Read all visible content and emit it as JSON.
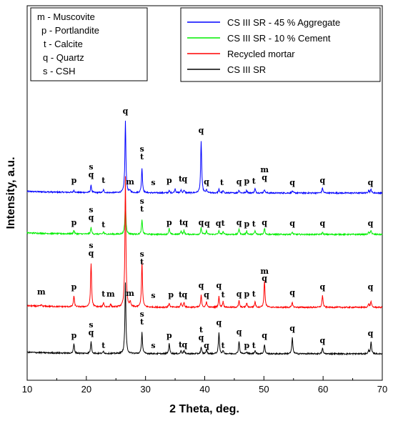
{
  "chart_data": {
    "type": "line",
    "xlabel": "2 Theta, deg.",
    "ylabel": "Intensity, a.u.",
    "xlim": [
      10,
      70
    ],
    "xticks": [
      "10",
      "20",
      "30",
      "40",
      "50",
      "60",
      "70"
    ],
    "phase_legend": [
      "m - Muscovite",
      "p - Portlandite",
      "t - Calcite",
      "q - Quartz",
      "s - CSH"
    ],
    "series": [
      {
        "name": "CS III SR - 45 % Aggregate",
        "color": "#0000ff",
        "baseline": 270,
        "peaks": [
          {
            "x": 17.9,
            "h": 3
          },
          {
            "x": 20.8,
            "h": 10
          },
          {
            "x": 22.9,
            "h": 4
          },
          {
            "x": 26.6,
            "h": 100
          },
          {
            "x": 27.4,
            "h": 3
          },
          {
            "x": 29.4,
            "h": 35
          },
          {
            "x": 34.0,
            "h": 3
          },
          {
            "x": 35.0,
            "h": 6
          },
          {
            "x": 36.0,
            "h": 4
          },
          {
            "x": 36.5,
            "h": 4
          },
          {
            "x": 39.4,
            "h": 73
          },
          {
            "x": 40.3,
            "h": 4
          },
          {
            "x": 42.4,
            "h": 5
          },
          {
            "x": 43.1,
            "h": 3
          },
          {
            "x": 45.8,
            "h": 4
          },
          {
            "x": 47.1,
            "h": 4
          },
          {
            "x": 48.5,
            "h": 6
          },
          {
            "x": 50.1,
            "h": 5
          },
          {
            "x": 54.8,
            "h": 3
          },
          {
            "x": 59.9,
            "h": 7
          },
          {
            "x": 67.7,
            "h": 4
          },
          {
            "x": 68.1,
            "h": 5
          }
        ],
        "labels": [
          {
            "x": 17.9,
            "text": "p",
            "h": 14
          },
          {
            "x": 20.8,
            "text": "q",
            "h": 22
          },
          {
            "x": 20.8,
            "text": "s",
            "h": 33
          },
          {
            "x": 22.9,
            "text": "t",
            "h": 14
          },
          {
            "x": 26.6,
            "text": "q",
            "h": 111
          },
          {
            "x": 27.4,
            "text": "m",
            "h": 12
          },
          {
            "x": 29.4,
            "text": "t",
            "h": 47
          },
          {
            "x": 29.4,
            "text": "s",
            "h": 58
          },
          {
            "x": 31.3,
            "text": "s",
            "h": 11
          },
          {
            "x": 34.0,
            "text": "p",
            "h": 14
          },
          {
            "x": 35.9,
            "text": "t",
            "h": 16
          },
          {
            "x": 36.6,
            "text": "q",
            "h": 16
          },
          {
            "x": 39.4,
            "text": "q",
            "h": 84
          },
          {
            "x": 40.3,
            "text": "q",
            "h": 12
          },
          {
            "x": 42.9,
            "text": "t",
            "h": 11
          },
          {
            "x": 45.8,
            "text": "q",
            "h": 12
          },
          {
            "x": 47.1,
            "text": "p",
            "h": 13
          },
          {
            "x": 48.3,
            "text": "t",
            "h": 13
          },
          {
            "x": 50.1,
            "text": "q",
            "h": 18
          },
          {
            "x": 50.1,
            "text": "m",
            "h": 29
          },
          {
            "x": 54.8,
            "text": "q",
            "h": 11
          },
          {
            "x": 59.9,
            "text": "q",
            "h": 14
          },
          {
            "x": 68.0,
            "text": "q",
            "h": 11
          }
        ]
      },
      {
        "name": "CS III SR - 10 % Cement",
        "color": "#00ee00",
        "baseline": 328,
        "peaks": [
          {
            "x": 17.9,
            "h": 5
          },
          {
            "x": 20.8,
            "h": 9
          },
          {
            "x": 22.9,
            "h": 3
          },
          {
            "x": 26.6,
            "h": 47
          },
          {
            "x": 29.4,
            "h": 20
          },
          {
            "x": 34.0,
            "h": 8
          },
          {
            "x": 36.0,
            "h": 5
          },
          {
            "x": 36.5,
            "h": 5
          },
          {
            "x": 39.4,
            "h": 9
          },
          {
            "x": 40.3,
            "h": 5
          },
          {
            "x": 42.4,
            "h": 5
          },
          {
            "x": 43.1,
            "h": 4
          },
          {
            "x": 45.8,
            "h": 8
          },
          {
            "x": 47.1,
            "h": 5
          },
          {
            "x": 48.5,
            "h": 5
          },
          {
            "x": 50.1,
            "h": 9
          },
          {
            "x": 54.8,
            "h": 3
          },
          {
            "x": 59.9,
            "h": 3
          },
          {
            "x": 67.7,
            "h": 3
          },
          {
            "x": 68.1,
            "h": 6
          }
        ],
        "labels": [
          {
            "x": 17.9,
            "text": "p",
            "h": 13
          },
          {
            "x": 20.8,
            "text": "q",
            "h": 20
          },
          {
            "x": 20.8,
            "text": "s",
            "h": 31
          },
          {
            "x": 22.9,
            "text": "t",
            "h": 10
          },
          {
            "x": 29.4,
            "text": "t",
            "h": 32
          },
          {
            "x": 29.4,
            "text": "s",
            "h": 43
          },
          {
            "x": 34.0,
            "text": "p",
            "h": 13
          },
          {
            "x": 36.0,
            "text": "t",
            "h": 13
          },
          {
            "x": 36.7,
            "text": "q",
            "h": 13
          },
          {
            "x": 39.4,
            "text": "q",
            "h": 13
          },
          {
            "x": 40.4,
            "text": "q",
            "h": 12
          },
          {
            "x": 42.3,
            "text": "q",
            "h": 12
          },
          {
            "x": 43.1,
            "text": "t",
            "h": 12
          },
          {
            "x": 45.8,
            "text": "q",
            "h": 13
          },
          {
            "x": 47.1,
            "text": "p",
            "h": 11
          },
          {
            "x": 48.3,
            "text": "t",
            "h": 11
          },
          {
            "x": 50.1,
            "text": "q",
            "h": 13
          },
          {
            "x": 54.8,
            "text": "q",
            "h": 12
          },
          {
            "x": 59.9,
            "text": "q",
            "h": 12
          },
          {
            "x": 68.0,
            "text": "q",
            "h": 12
          }
        ]
      },
      {
        "name": "Recycled mortar",
        "color": "#ff0000",
        "baseline": 430,
        "peaks": [
          {
            "x": 12.4,
            "h": 2
          },
          {
            "x": 17.9,
            "h": 15
          },
          {
            "x": 20.8,
            "h": 61
          },
          {
            "x": 22.9,
            "h": 6
          },
          {
            "x": 24.1,
            "h": 4
          },
          {
            "x": 26.6,
            "h": 182
          },
          {
            "x": 27.4,
            "h": 7
          },
          {
            "x": 29.4,
            "h": 64
          },
          {
            "x": 34.0,
            "h": 6
          },
          {
            "x": 36.0,
            "h": 6
          },
          {
            "x": 36.5,
            "h": 7
          },
          {
            "x": 39.4,
            "h": 17
          },
          {
            "x": 40.3,
            "h": 8
          },
          {
            "x": 42.4,
            "h": 15
          },
          {
            "x": 43.1,
            "h": 8
          },
          {
            "x": 45.8,
            "h": 9
          },
          {
            "x": 47.1,
            "h": 6
          },
          {
            "x": 48.5,
            "h": 8
          },
          {
            "x": 50.1,
            "h": 37
          },
          {
            "x": 54.8,
            "h": 7
          },
          {
            "x": 59.9,
            "h": 17
          },
          {
            "x": 67.7,
            "h": 5
          },
          {
            "x": 68.1,
            "h": 8
          }
        ],
        "labels": [
          {
            "x": 12.4,
            "text": "m",
            "h": 18
          },
          {
            "x": 17.9,
            "text": "p",
            "h": 25
          },
          {
            "x": 20.8,
            "text": "q",
            "h": 72
          },
          {
            "x": 20.8,
            "text": "s",
            "h": 83
          },
          {
            "x": 22.9,
            "text": "t",
            "h": 15
          },
          {
            "x": 24.1,
            "text": "m",
            "h": 15
          },
          {
            "x": 27.4,
            "text": "m",
            "h": 16
          },
          {
            "x": 29.4,
            "text": "t",
            "h": 60
          },
          {
            "x": 29.4,
            "text": "s",
            "h": 71
          },
          {
            "x": 31.3,
            "text": "s",
            "h": 13
          },
          {
            "x": 34.3,
            "text": "p",
            "h": 14
          },
          {
            "x": 35.9,
            "text": "t",
            "h": 14
          },
          {
            "x": 36.6,
            "text": "q",
            "h": 14
          },
          {
            "x": 39.4,
            "text": "q",
            "h": 27
          },
          {
            "x": 40.3,
            "text": "q",
            "h": 14
          },
          {
            "x": 42.4,
            "text": "q",
            "h": 27
          },
          {
            "x": 43.1,
            "text": "t",
            "h": 14
          },
          {
            "x": 45.8,
            "text": "q",
            "h": 15
          },
          {
            "x": 47.1,
            "text": "p",
            "h": 15
          },
          {
            "x": 48.3,
            "text": "t",
            "h": 15
          },
          {
            "x": 50.1,
            "text": "q",
            "h": 37
          },
          {
            "x": 50.1,
            "text": "m",
            "h": 47
          },
          {
            "x": 54.8,
            "text": "q",
            "h": 17
          },
          {
            "x": 59.9,
            "text": "q",
            "h": 25
          },
          {
            "x": 68.0,
            "text": "q",
            "h": 25
          }
        ]
      },
      {
        "name": "CS III SR",
        "color": "#000000",
        "baseline": 495,
        "peaks": [
          {
            "x": 17.9,
            "h": 13
          },
          {
            "x": 20.8,
            "h": 16
          },
          {
            "x": 22.9,
            "h": 3
          },
          {
            "x": 26.6,
            "h": 100
          },
          {
            "x": 29.4,
            "h": 30
          },
          {
            "x": 34.0,
            "h": 15
          },
          {
            "x": 36.0,
            "h": 4
          },
          {
            "x": 36.5,
            "h": 5
          },
          {
            "x": 39.4,
            "h": 9
          },
          {
            "x": 40.3,
            "h": 6
          },
          {
            "x": 42.4,
            "h": 30
          },
          {
            "x": 43.1,
            "h": 4
          },
          {
            "x": 45.8,
            "h": 18
          },
          {
            "x": 47.1,
            "h": 3
          },
          {
            "x": 48.5,
            "h": 5
          },
          {
            "x": 50.1,
            "h": 13
          },
          {
            "x": 54.8,
            "h": 23
          },
          {
            "x": 59.9,
            "h": 8
          },
          {
            "x": 67.7,
            "h": 4
          },
          {
            "x": 68.1,
            "h": 16
          }
        ],
        "labels": [
          {
            "x": 17.9,
            "text": "p",
            "h": 22
          },
          {
            "x": 20.8,
            "text": "q",
            "h": 26
          },
          {
            "x": 20.8,
            "text": "s",
            "h": 37
          },
          {
            "x": 22.9,
            "text": "t",
            "h": 8
          },
          {
            "x": 29.4,
            "text": "t",
            "h": 41
          },
          {
            "x": 29.4,
            "text": "s",
            "h": 52
          },
          {
            "x": 31.3,
            "text": "s",
            "h": 8
          },
          {
            "x": 34.0,
            "text": "p",
            "h": 22
          },
          {
            "x": 35.9,
            "text": "t",
            "h": 9
          },
          {
            "x": 36.6,
            "text": "q",
            "h": 9
          },
          {
            "x": 39.4,
            "text": "q",
            "h": 19
          },
          {
            "x": 39.4,
            "text": "t",
            "h": 30
          },
          {
            "x": 40.3,
            "text": "q",
            "h": 8
          },
          {
            "x": 42.4,
            "text": "q",
            "h": 40
          },
          {
            "x": 43.1,
            "text": "t",
            "h": 8
          },
          {
            "x": 45.8,
            "text": "q",
            "h": 27
          },
          {
            "x": 47.1,
            "text": "p",
            "h": 8
          },
          {
            "x": 48.3,
            "text": "t",
            "h": 8
          },
          {
            "x": 50.1,
            "text": "q",
            "h": 22
          },
          {
            "x": 54.8,
            "text": "q",
            "h": 32
          },
          {
            "x": 59.9,
            "text": "q",
            "h": 15
          },
          {
            "x": 68.0,
            "text": "q",
            "h": 25
          }
        ]
      }
    ]
  }
}
